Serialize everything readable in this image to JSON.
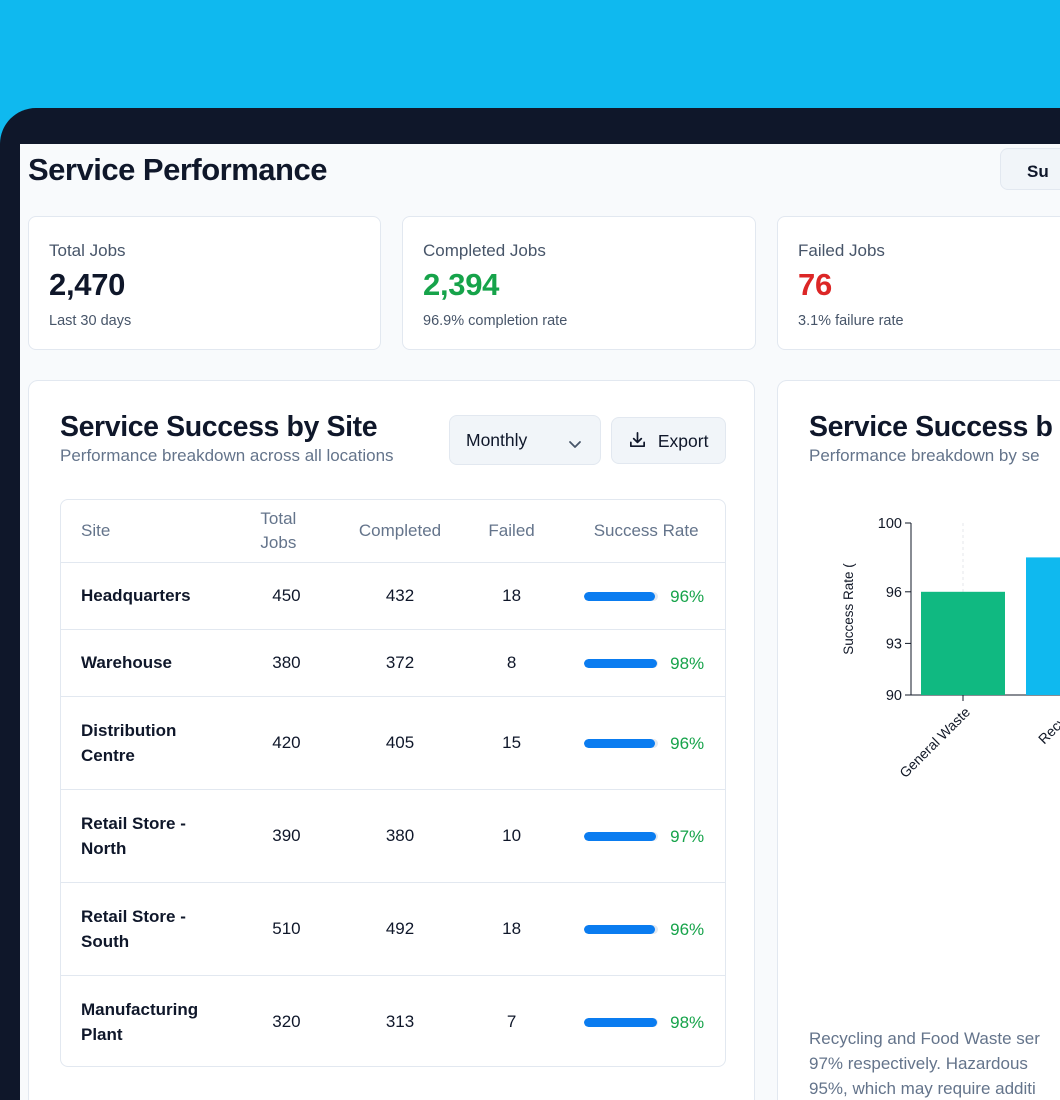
{
  "page": {
    "title": "Service Performance",
    "top_button_label": "Su"
  },
  "stats": [
    {
      "label": "Total Jobs",
      "value": "2,470",
      "sub": "Last 30 days"
    },
    {
      "label": "Completed Jobs",
      "value": "2,394",
      "sub": "96.9% completion rate"
    },
    {
      "label": "Failed Jobs",
      "value": "76",
      "sub": "3.1% failure rate"
    }
  ],
  "site_panel": {
    "title": "Service Success by Site",
    "subtitle": "Performance breakdown across all locations",
    "period": "Monthly",
    "export_label": "Export",
    "columns": [
      "Site",
      "Total Jobs",
      "Completed",
      "Failed",
      "Success Rate"
    ],
    "rows": [
      {
        "site": "Headquarters",
        "total": "450",
        "completed": "432",
        "failed": "18",
        "rate": "96%",
        "rate_value": 96
      },
      {
        "site": "Warehouse",
        "total": "380",
        "completed": "372",
        "failed": "8",
        "rate": "98%",
        "rate_value": 98
      },
      {
        "site": "Distribution Centre",
        "total": "420",
        "completed": "405",
        "failed": "15",
        "rate": "96%",
        "rate_value": 96
      },
      {
        "site": "Retail Store - North",
        "total": "390",
        "completed": "380",
        "failed": "10",
        "rate": "97%",
        "rate_value": 97
      },
      {
        "site": "Retail Store - South",
        "total": "510",
        "completed": "492",
        "failed": "18",
        "rate": "96%",
        "rate_value": 96
      },
      {
        "site": "Manufacturing Plant",
        "total": "320",
        "completed": "313",
        "failed": "7",
        "rate": "98%",
        "rate_value": 98
      }
    ]
  },
  "type_panel": {
    "title": "Service Success b",
    "subtitle": "Performance breakdown by se",
    "summary_lines": [
      "Recycling and Food Waste ser",
      "97% respectively. Hazardous",
      "95%, which may require additi"
    ]
  },
  "chart_data": {
    "type": "bar",
    "ylabel": "Success Rate (",
    "ylim": [
      90,
      100
    ],
    "yticks": [
      "100",
      "96",
      "93",
      "90"
    ],
    "ytick_values": [
      100,
      96,
      93,
      90
    ],
    "categories": [
      "General Waste",
      "Recycli"
    ],
    "values": [
      96,
      98
    ],
    "colors": [
      "#10b981",
      "#0fb9ef"
    ],
    "grid": true
  }
}
